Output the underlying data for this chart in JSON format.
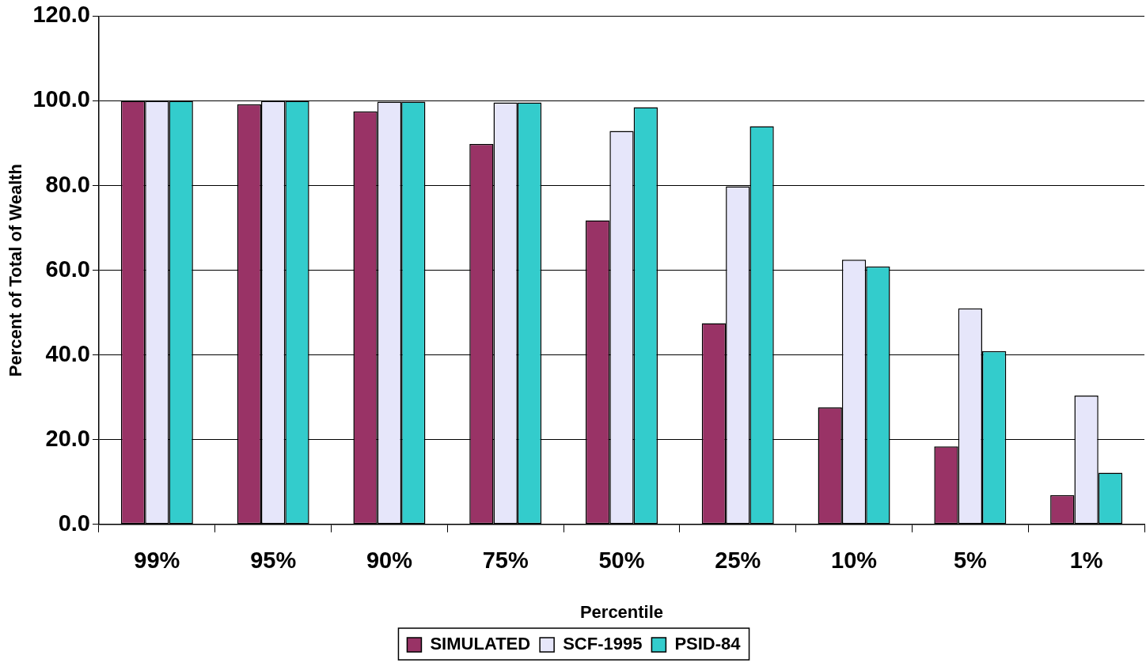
{
  "chart_data": {
    "type": "bar",
    "xlabel": "Percentile",
    "ylabel": "Percent of Total of Wealth",
    "categories": [
      "99%",
      "95%",
      "90%",
      "75%",
      "50%",
      "25%",
      "10%",
      "5%",
      "1%"
    ],
    "series": [
      {
        "name": "SIMULATED",
        "color": "#993366",
        "values": [
          100,
          99.2,
          97.5,
          89.8,
          71.8,
          47.5,
          27.6,
          18.4,
          6.9
        ]
      },
      {
        "name": "SCF-1995",
        "color": "#e6e6fa",
        "values": [
          100,
          100,
          99.8,
          99.6,
          92.9,
          79.8,
          62.5,
          51.0,
          30.4
        ]
      },
      {
        "name": "PSID-84",
        "color": "#33cccc",
        "values": [
          100,
          100,
          99.8,
          99.6,
          98.5,
          94.0,
          60.9,
          40.9,
          12.2
        ]
      }
    ],
    "ylim": [
      0,
      120
    ],
    "yticks": [
      {
        "value": 0,
        "label": "0.0"
      },
      {
        "value": 20,
        "label": "20.0"
      },
      {
        "value": 40,
        "label": "40.0"
      },
      {
        "value": 60,
        "label": "60.0"
      },
      {
        "value": 80,
        "label": "80.0"
      },
      {
        "value": 100,
        "label": "100.0"
      },
      {
        "value": 120,
        "label": "120.0"
      }
    ],
    "grid": "y",
    "legend": "bottom"
  }
}
